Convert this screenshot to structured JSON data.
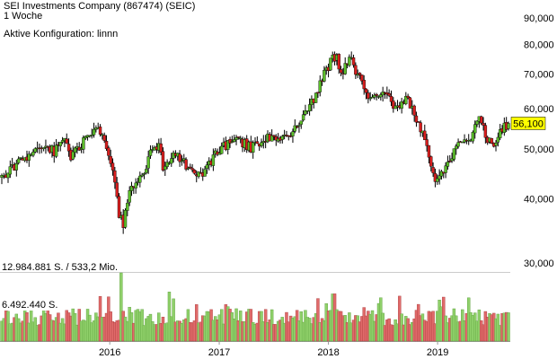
{
  "header": {
    "title": "SEI Investments Company (867474) (SEIC)",
    "period": "1 Woche",
    "config": "Aktive Konfiguration: linnn"
  },
  "chart_data": [
    {
      "type": "candlestick",
      "y_scale": "log",
      "ylim": [
        30000,
        90000
      ],
      "y_ticks": [
        "90,000",
        "80,000",
        "70,000",
        "60,000",
        "50,000",
        "40,000",
        "30,000"
      ],
      "x_ticks": [
        "2016",
        "2017",
        "2018",
        "2019"
      ],
      "last_price_label": "56,100",
      "colors": {
        "up": "#5cbf2a",
        "down": "#d81e1e",
        "wick": "#000000",
        "last_price_bg": "#ffff00"
      },
      "close_path": [
        [
          "2015-01-05",
          43800
        ],
        [
          "2015-03-16",
          47700
        ],
        [
          "2015-05-18",
          50800
        ],
        [
          "2015-06-29",
          49500
        ],
        [
          "2015-08-03",
          53300
        ],
        [
          "2015-08-24",
          48500
        ],
        [
          "2015-10-19",
          52700
        ],
        [
          "2015-11-30",
          54500
        ],
        [
          "2015-12-21",
          50000
        ],
        [
          "2016-01-11",
          45000
        ],
        [
          "2016-02-01",
          37500
        ],
        [
          "2016-02-15",
          35500
        ],
        [
          "2016-03-07",
          41000
        ],
        [
          "2016-04-11",
          43800
        ],
        [
          "2016-05-16",
          48700
        ],
        [
          "2016-06-13",
          51500
        ],
        [
          "2016-06-27",
          46000
        ],
        [
          "2016-08-01",
          49500
        ],
        [
          "2016-09-26",
          45300
        ],
        [
          "2016-11-07",
          44000
        ],
        [
          "2016-12-26",
          49700
        ],
        [
          "2017-03-06",
          52300
        ],
        [
          "2017-04-17",
          50200
        ],
        [
          "2017-06-05",
          52700
        ],
        [
          "2017-07-31",
          52000
        ],
        [
          "2017-09-25",
          56000
        ],
        [
          "2017-11-13",
          62500
        ],
        [
          "2018-01-08",
          74000
        ],
        [
          "2018-01-29",
          76600
        ],
        [
          "2018-02-12",
          69500
        ],
        [
          "2018-03-12",
          76000
        ],
        [
          "2018-04-02",
          70500
        ],
        [
          "2018-05-14",
          64000
        ],
        [
          "2018-07-02",
          64700
        ],
        [
          "2018-08-20",
          60000
        ],
        [
          "2018-09-24",
          62500
        ],
        [
          "2018-10-22",
          56500
        ],
        [
          "2018-11-12",
          53500
        ],
        [
          "2018-12-10",
          46500
        ],
        [
          "2018-12-24",
          42500
        ],
        [
          "2019-01-21",
          45500
        ],
        [
          "2019-03-11",
          50500
        ],
        [
          "2019-04-22",
          52300
        ],
        [
          "2019-05-20",
          57000
        ],
        [
          "2019-06-17",
          52500
        ],
        [
          "2019-07-08",
          50500
        ],
        [
          "2019-08-05",
          54500
        ],
        [
          "2019-08-26",
          56100
        ]
      ]
    },
    {
      "type": "bar",
      "unit": "S.",
      "header_label": "12.984.881 S. / 533,2 Mio.",
      "level_label": "6.492.440 S.",
      "max_volume": 12984881,
      "mid_volume": 6492440
    }
  ]
}
